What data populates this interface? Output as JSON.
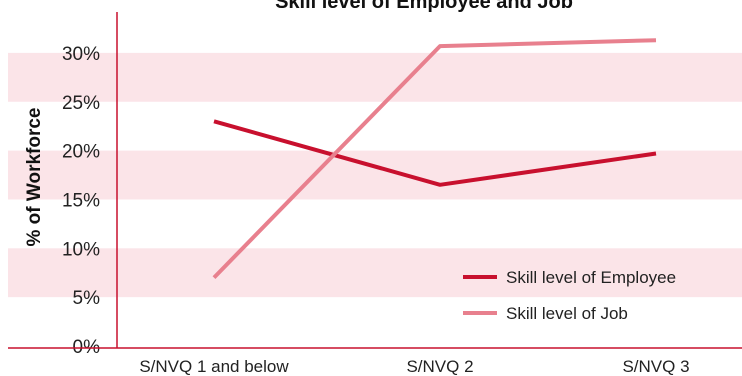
{
  "chart_data": {
    "type": "line",
    "title": "Skill level of Employee and Job",
    "ylabel": "% of Workforce",
    "xlabel": "",
    "categories": [
      "S/NVQ 1 and below",
      "S/NVQ 2",
      "S/NVQ 3"
    ],
    "ylim": [
      0,
      30
    ],
    "yticks": [
      "0%",
      "5%",
      "10%",
      "15%",
      "20%",
      "25%",
      "30%"
    ],
    "grid": "alternating horizontal bands",
    "legend_position": "bottom-right",
    "series": [
      {
        "name": "Skill level of Employee",
        "color": "#c8102e",
        "values": [
          23,
          16.5,
          19.7
        ]
      },
      {
        "name": "Skill level of Job",
        "color": "#e8808e",
        "values": [
          7,
          30.7,
          31.3
        ]
      }
    ],
    "band_color": "#fbe4e8",
    "axis_color": "#c8102e"
  }
}
